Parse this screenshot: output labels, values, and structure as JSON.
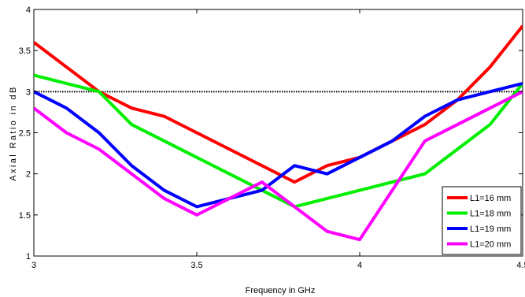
{
  "chart_data": {
    "type": "line",
    "xlabel": "Frequency in GHz",
    "ylabel": "Axial Ratio in dB",
    "xlim": [
      3,
      4.5
    ],
    "ylim": [
      1,
      4
    ],
    "xticks": [
      "3",
      "3.5",
      "4",
      "4.5"
    ],
    "yticks": [
      "1",
      "1.5",
      "2",
      "2.5",
      "3",
      "3.5",
      "4"
    ],
    "x": [
      3.0,
      3.1,
      3.2,
      3.3,
      3.4,
      3.5,
      3.6,
      3.7,
      3.8,
      3.9,
      4.0,
      4.1,
      4.2,
      4.3,
      4.4,
      4.5
    ],
    "reference_line": {
      "y": 3,
      "style": "dotted",
      "color": "#000000"
    },
    "legend_position": "bottom-right",
    "grid": false,
    "series": [
      {
        "name": "L1=16 mm",
        "color": "#ff0000",
        "values": [
          3.6,
          3.3,
          3.0,
          2.8,
          2.7,
          2.5,
          2.3,
          2.1,
          1.9,
          2.1,
          2.2,
          2.4,
          2.6,
          2.9,
          3.3,
          3.8
        ]
      },
      {
        "name": "L1=18 mm",
        "color": "#00ee00",
        "values": [
          3.2,
          3.1,
          3.0,
          2.6,
          2.4,
          2.2,
          2.0,
          1.8,
          1.6,
          1.7,
          1.8,
          1.9,
          2.0,
          2.3,
          2.6,
          3.1
        ]
      },
      {
        "name": "L1=19 mm",
        "color": "#0000ff",
        "values": [
          3.0,
          2.8,
          2.5,
          2.1,
          1.8,
          1.6,
          1.7,
          1.8,
          2.1,
          2.0,
          2.2,
          2.4,
          2.7,
          2.9,
          3.0,
          3.1
        ]
      },
      {
        "name": "L1=20 mm",
        "color": "#ff00ff",
        "values": [
          2.8,
          2.5,
          2.3,
          2.0,
          1.7,
          1.5,
          1.7,
          1.9,
          1.6,
          1.3,
          1.2,
          1.8,
          2.4,
          2.6,
          2.8,
          3.0
        ]
      }
    ]
  }
}
